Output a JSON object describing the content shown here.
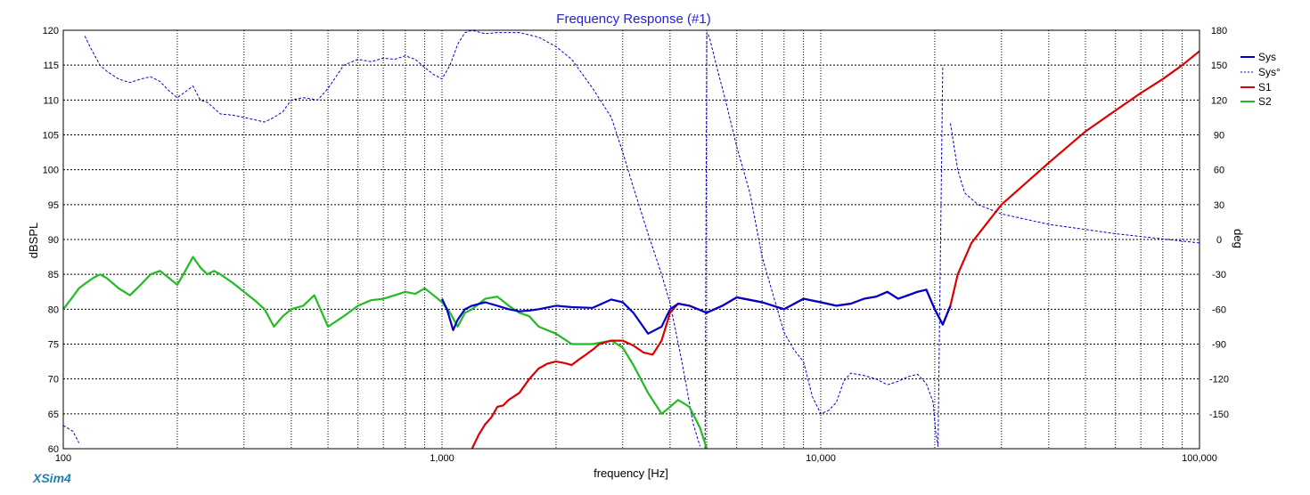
{
  "app": {
    "brand": "XSim4"
  },
  "chart_data": {
    "type": "line",
    "title": "Frequency Response (#1)",
    "xlabel": "frequency [Hz]",
    "ylabel": "dBSPL",
    "y2label": "deg",
    "xscale": "log",
    "xlim": [
      100,
      100000
    ],
    "ylim": [
      60,
      120
    ],
    "y2lim": [
      -180,
      180
    ],
    "x_ticks": [
      100,
      1000,
      10000,
      100000
    ],
    "x_tick_labels": [
      "100",
      "1,000",
      "10,000",
      "100,000"
    ],
    "y_ticks": [
      "120",
      "115",
      "110",
      "105",
      "100",
      "95",
      "90",
      "85",
      "80",
      "75",
      "70",
      "65",
      "60"
    ],
    "y2_ticks": [
      "180",
      "150",
      "120",
      "90",
      "60",
      "30",
      "0",
      "-30",
      "-60",
      "-90",
      "-120",
      "-150"
    ],
    "grid": true,
    "legend_position": "right",
    "series": [
      {
        "name": "Sys",
        "color": "#0000cc",
        "axis": "y",
        "style": "solid",
        "x": [
          1000,
          1030,
          1070,
          1100,
          1150,
          1200,
          1300,
          1400,
          1500,
          1600,
          1700,
          1800,
          2000,
          2200,
          2500,
          2800,
          3000,
          3200,
          3500,
          3800,
          4000,
          4200,
          4500,
          5000,
          5500,
          6000,
          7000,
          8000,
          9000,
          10000,
          11000,
          12000,
          13000,
          14000,
          15000,
          16000,
          17000,
          18000,
          19000,
          20000,
          21000,
          22000
        ],
        "values": [
          81.5,
          80.0,
          77.0,
          78.5,
          80.0,
          80.5,
          81.0,
          80.5,
          80.0,
          79.7,
          79.8,
          80.0,
          80.5,
          80.3,
          80.2,
          81.4,
          81.0,
          79.5,
          76.5,
          77.5,
          80.0,
          80.8,
          80.5,
          79.5,
          80.5,
          81.7,
          81.0,
          80.0,
          81.5,
          81.0,
          80.5,
          80.8,
          81.5,
          81.8,
          82.5,
          81.5,
          82.0,
          82.5,
          82.8,
          80.0,
          77.8,
          80.5
        ]
      },
      {
        "name": "Sys°",
        "color": "#0000cc",
        "axis": "y2",
        "style": "dashed",
        "x": [
          100,
          106,
          110,
          114,
          118,
          125,
          130,
          140,
          150,
          160,
          170,
          180,
          190,
          200,
          210,
          220,
          230,
          240,
          260,
          280,
          300,
          320,
          340,
          360,
          380,
          400,
          430,
          470,
          500,
          550,
          600,
          650,
          700,
          750,
          800,
          850,
          900,
          950,
          1000,
          1050,
          1100,
          1150,
          1200,
          1300,
          1400,
          1600,
          1800,
          2000,
          2200,
          2500,
          2800,
          3000,
          3200,
          3500,
          3800,
          4000,
          4300,
          4600,
          4800,
          4950,
          5000,
          5050,
          5100,
          5300,
          5600,
          6000,
          6500,
          7000,
          8000,
          8500,
          9000,
          9500,
          10000,
          10500,
          11000,
          11500,
          12000,
          13000,
          14000,
          15000,
          16000,
          17000,
          18000,
          19000,
          19800,
          20100,
          20400,
          21000,
          22000,
          23000,
          24000,
          26000,
          30000,
          40000,
          60000,
          100000
        ],
        "values": [
          -160,
          -165,
          -175,
          175,
          165,
          150,
          145,
          138,
          135,
          138,
          140,
          136,
          128,
          122,
          127,
          132,
          120,
          118,
          108,
          107,
          105,
          103,
          101,
          105,
          110,
          120,
          122,
          120,
          130,
          150,
          155,
          153,
          156,
          155,
          158,
          155,
          148,
          142,
          138,
          150,
          168,
          178,
          180,
          177,
          178,
          178,
          174,
          166,
          155,
          130,
          105,
          75,
          45,
          5,
          -30,
          -55,
          -105,
          -158,
          -178,
          -180,
          178,
          176,
          172,
          150,
          120,
          80,
          40,
          -15,
          -80,
          -95,
          -105,
          -135,
          -150,
          -147,
          -140,
          -122,
          -115,
          -117,
          -120,
          -125,
          -122,
          -118,
          -116,
          -124,
          -140,
          -165,
          -178,
          150,
          100,
          60,
          40,
          30,
          22,
          13,
          5,
          -3
        ],
        "breaks_after": [
          2,
          58,
          87
        ]
      },
      {
        "name": "S1",
        "color": "#dd0000",
        "axis": "y",
        "style": "solid",
        "x": [
          1150,
          1200,
          1250,
          1300,
          1350,
          1400,
          1450,
          1500,
          1600,
          1700,
          1800,
          1900,
          2000,
          2100,
          2200,
          2300,
          2400,
          2500,
          2600,
          2800,
          3000,
          3200,
          3400,
          3600,
          3800,
          4000,
          4200,
          4500,
          5000,
          5500,
          6000,
          7000,
          8000,
          9000,
          10000,
          11000,
          12000,
          13000,
          14000,
          15000,
          16000,
          17000,
          18000,
          19000,
          20000,
          21000,
          22000,
          23000,
          25000,
          30000,
          40000,
          50000,
          60000,
          70000,
          80000,
          90000,
          100000
        ],
        "values": [
          59.0,
          60.0,
          62.0,
          63.5,
          64.5,
          66.0,
          66.2,
          67.0,
          68.0,
          70.0,
          71.5,
          72.2,
          72.5,
          72.3,
          72.0,
          72.8,
          73.5,
          74.2,
          75.0,
          75.5,
          75.5,
          74.8,
          73.8,
          73.5,
          75.5,
          79.5,
          80.8,
          80.5,
          79.5,
          80.5,
          81.7,
          81.0,
          80.0,
          81.5,
          81.0,
          80.5,
          80.8,
          81.5,
          81.8,
          82.5,
          81.5,
          82.0,
          82.5,
          82.8,
          80.0,
          77.8,
          80.5,
          85.0,
          89.5,
          95.0,
          101.0,
          105.5,
          108.5,
          111.0,
          113.0,
          115.0,
          117.0
        ]
      },
      {
        "name": "S2",
        "color": "#22bb22",
        "axis": "y",
        "style": "solid",
        "x": [
          100,
          105,
          110,
          115,
          120,
          125,
          130,
          140,
          150,
          160,
          170,
          180,
          190,
          200,
          210,
          220,
          230,
          240,
          250,
          260,
          280,
          300,
          320,
          340,
          360,
          380,
          400,
          430,
          460,
          500,
          550,
          600,
          650,
          700,
          750,
          800,
          850,
          900,
          950,
          1000,
          1050,
          1100,
          1150,
          1200,
          1300,
          1400,
          1500,
          1600,
          1700,
          1800,
          2000,
          2200,
          2500,
          2800,
          3000,
          3200,
          3500,
          3800,
          4000,
          4200,
          4500,
          4800,
          5000
        ],
        "values": [
          80.0,
          81.5,
          83.0,
          83.8,
          84.5,
          85.0,
          84.5,
          83.0,
          82.0,
          83.5,
          85.0,
          85.5,
          84.5,
          83.5,
          85.5,
          87.5,
          86.0,
          85.0,
          85.5,
          85.0,
          83.8,
          82.5,
          81.3,
          80.0,
          77.5,
          79.0,
          80.0,
          80.5,
          82.0,
          77.5,
          79.0,
          80.5,
          81.3,
          81.5,
          82.0,
          82.5,
          82.2,
          83.0,
          82.0,
          81.0,
          79.5,
          77.5,
          79.5,
          80.0,
          81.5,
          81.8,
          80.5,
          79.5,
          79.0,
          77.5,
          76.5,
          75.0,
          75.0,
          75.5,
          74.5,
          72.0,
          68.0,
          65.0,
          66.0,
          67.0,
          66.0,
          63.0,
          60.0
        ]
      }
    ]
  }
}
